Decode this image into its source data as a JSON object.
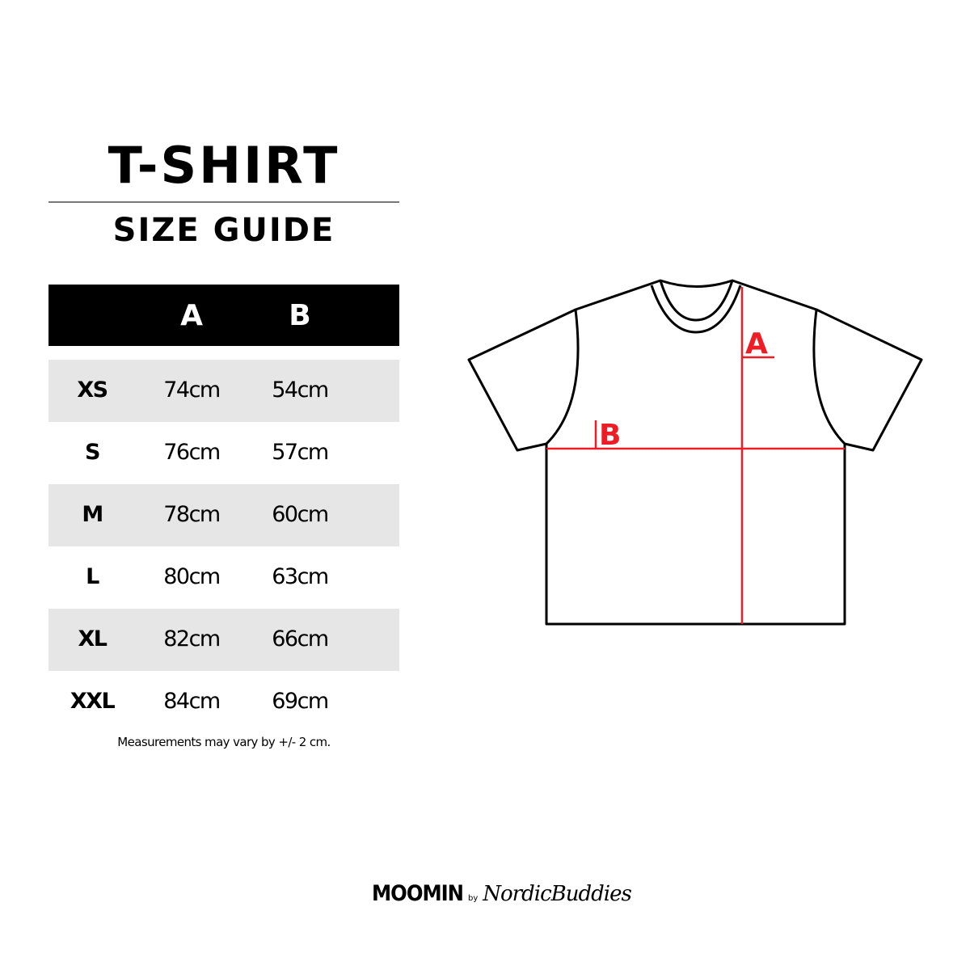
{
  "title": "T-SHIRT",
  "subtitle": "SIZE GUIDE",
  "table": {
    "headers": [
      "",
      "A",
      "B"
    ],
    "rows": [
      {
        "size": "XS",
        "a": "74cm",
        "b": "54cm"
      },
      {
        "size": "S",
        "a": "76cm",
        "b": "57cm"
      },
      {
        "size": "M",
        "a": "78cm",
        "b": "60cm"
      },
      {
        "size": "L",
        "a": "80cm",
        "b": "63cm"
      },
      {
        "size": "XL",
        "a": "82cm",
        "b": "66cm"
      },
      {
        "size": "XXL",
        "a": "84cm",
        "b": "69cm"
      }
    ]
  },
  "note": "Measurements may vary by +/- 2 cm.",
  "diagram": {
    "label_a": "A",
    "label_b": "B",
    "measure_color": "#ee1c25"
  },
  "logo": {
    "brand": "MOOMIN",
    "by": "by",
    "partner": "NordicBuddies"
  }
}
